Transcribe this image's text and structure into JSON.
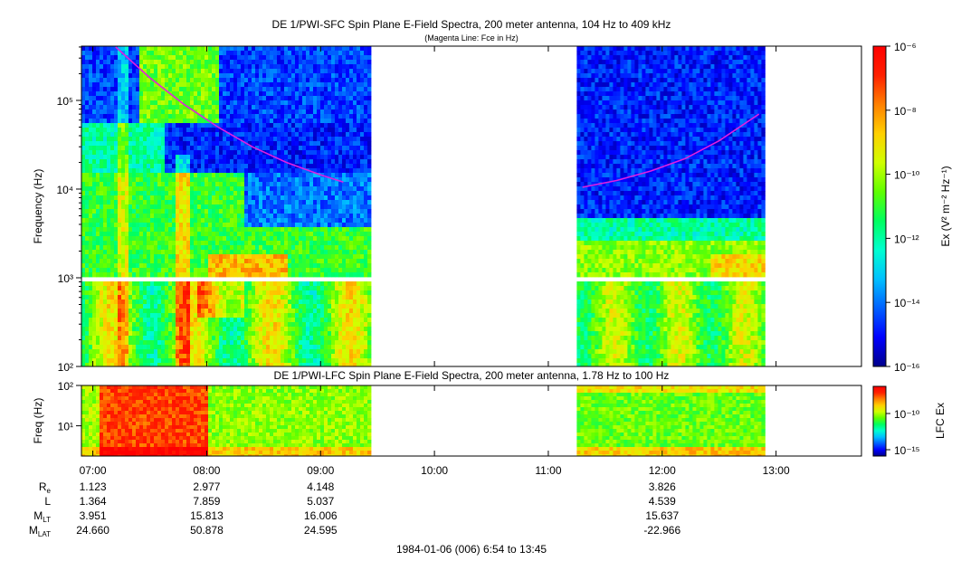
{
  "colors": {
    "fce_line": "#e020e0",
    "colormap": [
      "#00008b",
      "#0000ff",
      "#0060ff",
      "#00c0ff",
      "#00ffd0",
      "#00ff60",
      "#60ff00",
      "#d0ff00",
      "#ffd000",
      "#ff8000",
      "#ff2000",
      "#ff0000"
    ]
  },
  "top_panel": {
    "title": "DE 1/PWI-SFC  Spin Plane E-Field Spectra, 200 meter antenna, 104 Hz to 409 kHz",
    "subtitle": "(Magenta Line: Fce in Hz)",
    "ylabel": "Frequency (Hz)",
    "colorbar_label": "Ex (V² m⁻² Hz⁻¹)",
    "colorbar_ticks": [
      "10⁻⁶",
      "10⁻⁸",
      "10⁻¹⁰",
      "10⁻¹²",
      "10⁻¹⁴",
      "10⁻¹⁶"
    ]
  },
  "bottom_panel": {
    "title": "DE 1/PWI-LFC  Spin Plane E-Field Spectra, 200 meter antenna, 1.78 Hz to 100 Hz",
    "ylabel": "Freq (Hz)",
    "colorbar_label": "LFC Ex",
    "colorbar_ticks": [
      "10⁻¹⁰",
      "10⁻¹⁵"
    ]
  },
  "ephemeris": {
    "labels": [
      "R",
      "L",
      "M",
      "M"
    ],
    "label_subscripts": [
      "e",
      "",
      "LT",
      "LAT"
    ],
    "columns": [
      {
        "time": "07:00",
        "Re": "1.123",
        "L": "1.364",
        "MLT": "3.951",
        "MLAT": "24.660"
      },
      {
        "time": "08:00",
        "Re": "2.977",
        "L": "7.859",
        "MLT": "15.813",
        "MLAT": "50.878"
      },
      {
        "time": "09:00",
        "Re": "4.148",
        "L": "5.037",
        "MLT": "16.006",
        "MLAT": "24.595"
      },
      {
        "time": "10:00",
        "Re": "",
        "L": "",
        "MLT": "",
        "MLAT": ""
      },
      {
        "time": "11:00",
        "Re": "",
        "L": "",
        "MLT": "",
        "MLAT": ""
      },
      {
        "time": "12:00",
        "Re": "3.826",
        "L": "4.539",
        "MLT": "15.637",
        "MLAT": "-22.966"
      },
      {
        "time": "13:00",
        "Re": "",
        "L": "",
        "MLT": "",
        "MLAT": ""
      }
    ]
  },
  "footer": "1984-01-06 (006) 6:54 to 13:45",
  "chart_data": [
    {
      "type": "heatmap",
      "title": "DE 1/PWI-SFC  Spin Plane E-Field Spectra, 200 meter antenna, 104 Hz to 409 kHz",
      "subtitle": "(Magenta Line: Fce in Hz)",
      "ylabel": "Frequency (Hz)",
      "yscale": "log",
      "ylim": [
        100,
        409000
      ],
      "x_range_hours": [
        6.9,
        13.75
      ],
      "x_tick_labels": [
        "07:00",
        "08:00",
        "09:00",
        "10:00",
        "11:00",
        "12:00",
        "13:00"
      ],
      "y_tick_labels": [
        "10²",
        "10³",
        "10⁴",
        "10⁵"
      ],
      "data_segments_hours": [
        [
          6.9,
          9.43
        ],
        [
          11.25,
          12.88
        ]
      ],
      "fce_line": {
        "segment1": {
          "x": [
            7.2,
            7.5,
            7.8,
            8.1,
            8.4,
            8.7,
            9.0,
            9.2
          ],
          "y": [
            400000,
            180000,
            90000,
            50000,
            30000,
            20000,
            14500,
            12000
          ]
        },
        "segment2": {
          "x": [
            11.3,
            11.6,
            11.9,
            12.2,
            12.5,
            12.85
          ],
          "y": [
            10500,
            12500,
            16000,
            22000,
            35000,
            70000
          ]
        }
      },
      "colorbar": {
        "label": "Ex (V² m⁻² Hz⁻¹)",
        "scale": "log",
        "range": [
          1e-16,
          1e-06
        ]
      }
    },
    {
      "type": "heatmap",
      "title": "DE 1/PWI-LFC  Spin Plane E-Field Spectra, 200 meter antenna, 1.78 Hz to 100 Hz",
      "ylabel": "Freq (Hz)",
      "yscale": "log",
      "ylim": [
        1.78,
        100
      ],
      "y_tick_labels": [
        "10²",
        "10¹"
      ],
      "data_segments_hours": [
        [
          6.9,
          9.43
        ],
        [
          11.25,
          12.88
        ]
      ],
      "colorbar": {
        "label": "LFC Ex",
        "scale": "log",
        "ticks": [
          "10⁻¹⁰",
          "10⁻¹⁵"
        ]
      }
    }
  ]
}
